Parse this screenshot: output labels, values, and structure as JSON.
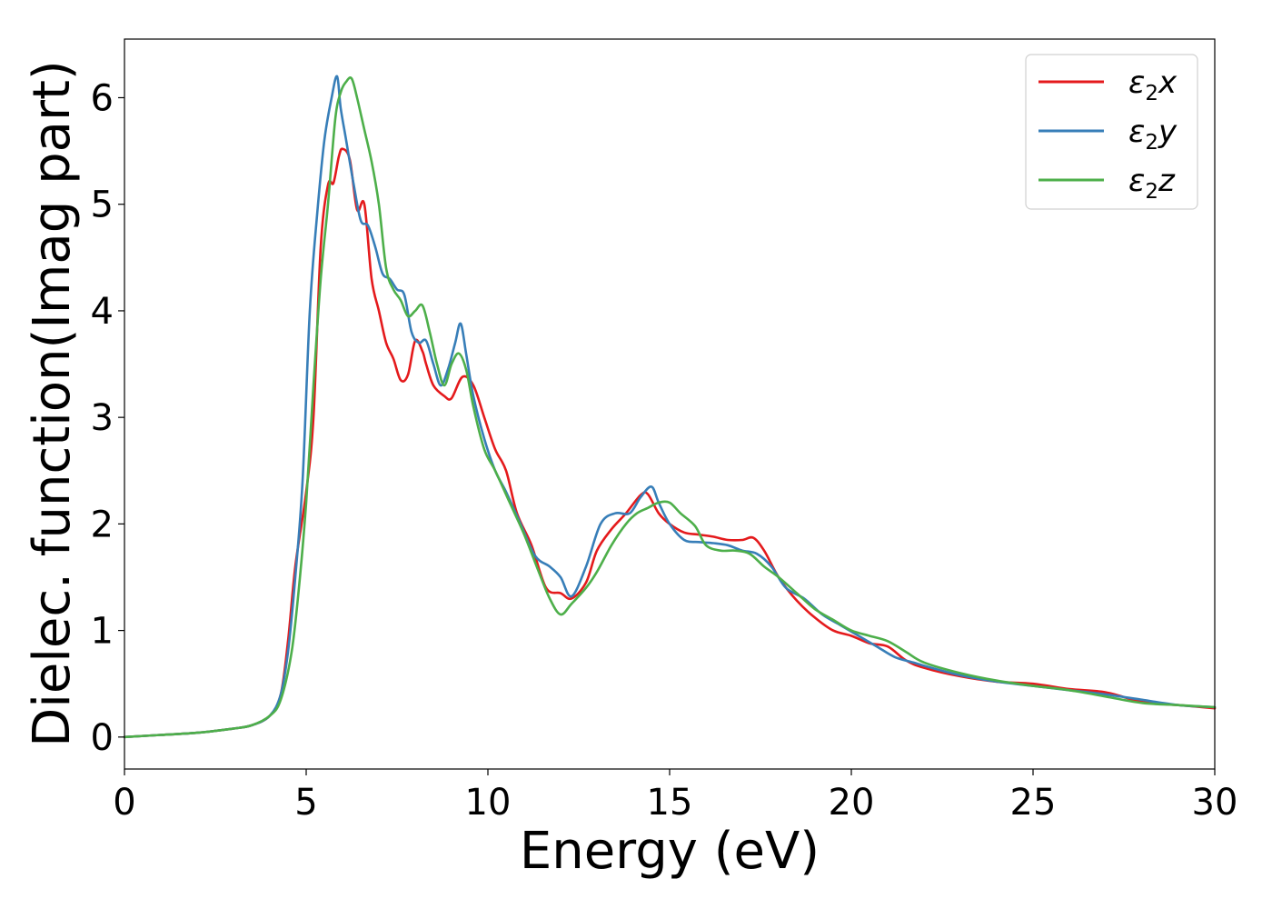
{
  "chart_data": {
    "type": "line",
    "xlabel": "Energy (eV)",
    "ylabel": "Dielec. function(Imag part)",
    "xlim": [
      0,
      30
    ],
    "ylim": [
      -0.3,
      6.55
    ],
    "xticks": [
      0,
      5,
      10,
      15,
      20,
      25,
      30
    ],
    "yticks": [
      0,
      1,
      2,
      3,
      4,
      5,
      6
    ],
    "grid": false,
    "legend_position": "top-right",
    "series": [
      {
        "name": "ε2x",
        "legend_base": "ε",
        "legend_sub": "2",
        "legend_var": "x",
        "color": "#e41a1c",
        "x": [
          0,
          1,
          2,
          3,
          3.5,
          4,
          4.3,
          4.5,
          4.7,
          5.0,
          5.2,
          5.4,
          5.6,
          5.75,
          5.9,
          6.0,
          6.2,
          6.4,
          6.6,
          6.8,
          7.0,
          7.2,
          7.4,
          7.6,
          7.8,
          8.0,
          8.2,
          8.3,
          8.5,
          8.8,
          9.0,
          9.3,
          9.6,
          9.9,
          10.2,
          10.5,
          10.8,
          11.2,
          11.6,
          12.0,
          12.3,
          12.7,
          13.0,
          13.4,
          13.8,
          14.2,
          14.4,
          14.7,
          15.0,
          15.4,
          15.8,
          16.2,
          16.6,
          17.0,
          17.3,
          17.6,
          18.0,
          18.5,
          19.0,
          19.5,
          20.0,
          20.5,
          21.0,
          21.5,
          22.0,
          23.0,
          24.0,
          25.0,
          26.0,
          27.0,
          28.0,
          29.0,
          30.0
        ],
        "y": [
          0.0,
          0.02,
          0.04,
          0.08,
          0.11,
          0.2,
          0.4,
          0.9,
          1.6,
          2.3,
          3.0,
          4.6,
          5.18,
          5.2,
          5.45,
          5.52,
          5.42,
          4.95,
          5.0,
          4.3,
          4.0,
          3.7,
          3.55,
          3.35,
          3.4,
          3.72,
          3.62,
          3.5,
          3.3,
          3.2,
          3.18,
          3.38,
          3.3,
          3.0,
          2.7,
          2.5,
          2.1,
          1.8,
          1.4,
          1.35,
          1.3,
          1.45,
          1.75,
          1.95,
          2.1,
          2.27,
          2.28,
          2.1,
          2.0,
          1.92,
          1.9,
          1.88,
          1.85,
          1.85,
          1.87,
          1.75,
          1.5,
          1.28,
          1.12,
          1.0,
          0.95,
          0.88,
          0.85,
          0.72,
          0.65,
          0.57,
          0.52,
          0.5,
          0.45,
          0.42,
          0.33,
          0.3,
          0.27
        ]
      },
      {
        "name": "ε2y",
        "legend_base": "ε",
        "legend_sub": "2",
        "legend_var": "y",
        "color": "#377eb8",
        "x": [
          0,
          1,
          2,
          3,
          3.5,
          4,
          4.3,
          4.5,
          4.7,
          4.9,
          5.1,
          5.3,
          5.5,
          5.7,
          5.85,
          5.95,
          6.1,
          6.3,
          6.5,
          6.7,
          6.9,
          7.1,
          7.3,
          7.5,
          7.7,
          7.9,
          8.1,
          8.3,
          8.5,
          8.7,
          8.9,
          9.1,
          9.25,
          9.4,
          9.6,
          9.9,
          10.2,
          10.5,
          10.9,
          11.3,
          11.7,
          12.0,
          12.3,
          12.7,
          13.1,
          13.5,
          13.9,
          14.2,
          14.5,
          14.7,
          15.0,
          15.4,
          15.8,
          16.2,
          16.6,
          17.0,
          17.4,
          17.8,
          18.2,
          18.7,
          19.2,
          19.7,
          20.2,
          20.7,
          21.2,
          21.7,
          22.2,
          23.0,
          24.0,
          25.0,
          26.0,
          27.0,
          28.0,
          29.0,
          30.0
        ],
        "y": [
          0.0,
          0.02,
          0.04,
          0.08,
          0.11,
          0.2,
          0.4,
          0.8,
          1.5,
          2.4,
          4.0,
          4.9,
          5.6,
          6.0,
          6.2,
          5.9,
          5.6,
          5.2,
          4.85,
          4.8,
          4.6,
          4.35,
          4.3,
          4.2,
          4.15,
          3.8,
          3.7,
          3.72,
          3.5,
          3.3,
          3.45,
          3.7,
          3.88,
          3.6,
          3.2,
          2.8,
          2.5,
          2.3,
          2.0,
          1.7,
          1.6,
          1.5,
          1.32,
          1.6,
          2.0,
          2.1,
          2.1,
          2.25,
          2.35,
          2.2,
          2.0,
          1.85,
          1.83,
          1.82,
          1.8,
          1.75,
          1.72,
          1.6,
          1.4,
          1.3,
          1.15,
          1.05,
          0.95,
          0.85,
          0.75,
          0.7,
          0.65,
          0.58,
          0.52,
          0.48,
          0.44,
          0.4,
          0.35,
          0.3,
          0.28
        ]
      },
      {
        "name": "ε2z",
        "legend_base": "ε",
        "legend_sub": "2",
        "legend_var": "z",
        "color": "#4daf4a",
        "x": [
          0,
          1,
          2,
          3,
          3.5,
          4,
          4.3,
          4.6,
          4.8,
          5.0,
          5.2,
          5.4,
          5.6,
          5.8,
          5.95,
          6.1,
          6.25,
          6.4,
          6.6,
          6.8,
          7.0,
          7.2,
          7.4,
          7.6,
          7.8,
          8.0,
          8.2,
          8.4,
          8.6,
          8.8,
          9.0,
          9.2,
          9.4,
          9.6,
          9.9,
          10.2,
          10.6,
          11.0,
          11.4,
          11.7,
          12.0,
          12.3,
          12.7,
          13.0,
          13.4,
          13.8,
          14.1,
          14.4,
          14.7,
          15.0,
          15.3,
          15.7,
          16.0,
          16.4,
          16.8,
          17.2,
          17.6,
          18.0,
          18.5,
          19.0,
          19.5,
          20.0,
          20.5,
          21.0,
          21.5,
          22.0,
          23.0,
          24.0,
          25.0,
          26.0,
          27.0,
          28.0,
          29.0,
          30.0
        ],
        "y": [
          0.0,
          0.02,
          0.04,
          0.08,
          0.11,
          0.2,
          0.35,
          0.8,
          1.4,
          2.2,
          3.3,
          4.3,
          5.0,
          5.8,
          6.05,
          6.15,
          6.18,
          6.0,
          5.7,
          5.4,
          5.0,
          4.4,
          4.2,
          4.1,
          3.95,
          4.0,
          4.05,
          3.8,
          3.5,
          3.3,
          3.5,
          3.6,
          3.45,
          3.1,
          2.7,
          2.5,
          2.2,
          1.9,
          1.55,
          1.3,
          1.15,
          1.25,
          1.4,
          1.55,
          1.8,
          2.0,
          2.1,
          2.15,
          2.2,
          2.2,
          2.1,
          1.98,
          1.8,
          1.75,
          1.75,
          1.72,
          1.6,
          1.5,
          1.35,
          1.2,
          1.1,
          1.0,
          0.95,
          0.9,
          0.8,
          0.7,
          0.6,
          0.53,
          0.48,
          0.44,
          0.38,
          0.32,
          0.3,
          0.28
        ]
      }
    ]
  }
}
